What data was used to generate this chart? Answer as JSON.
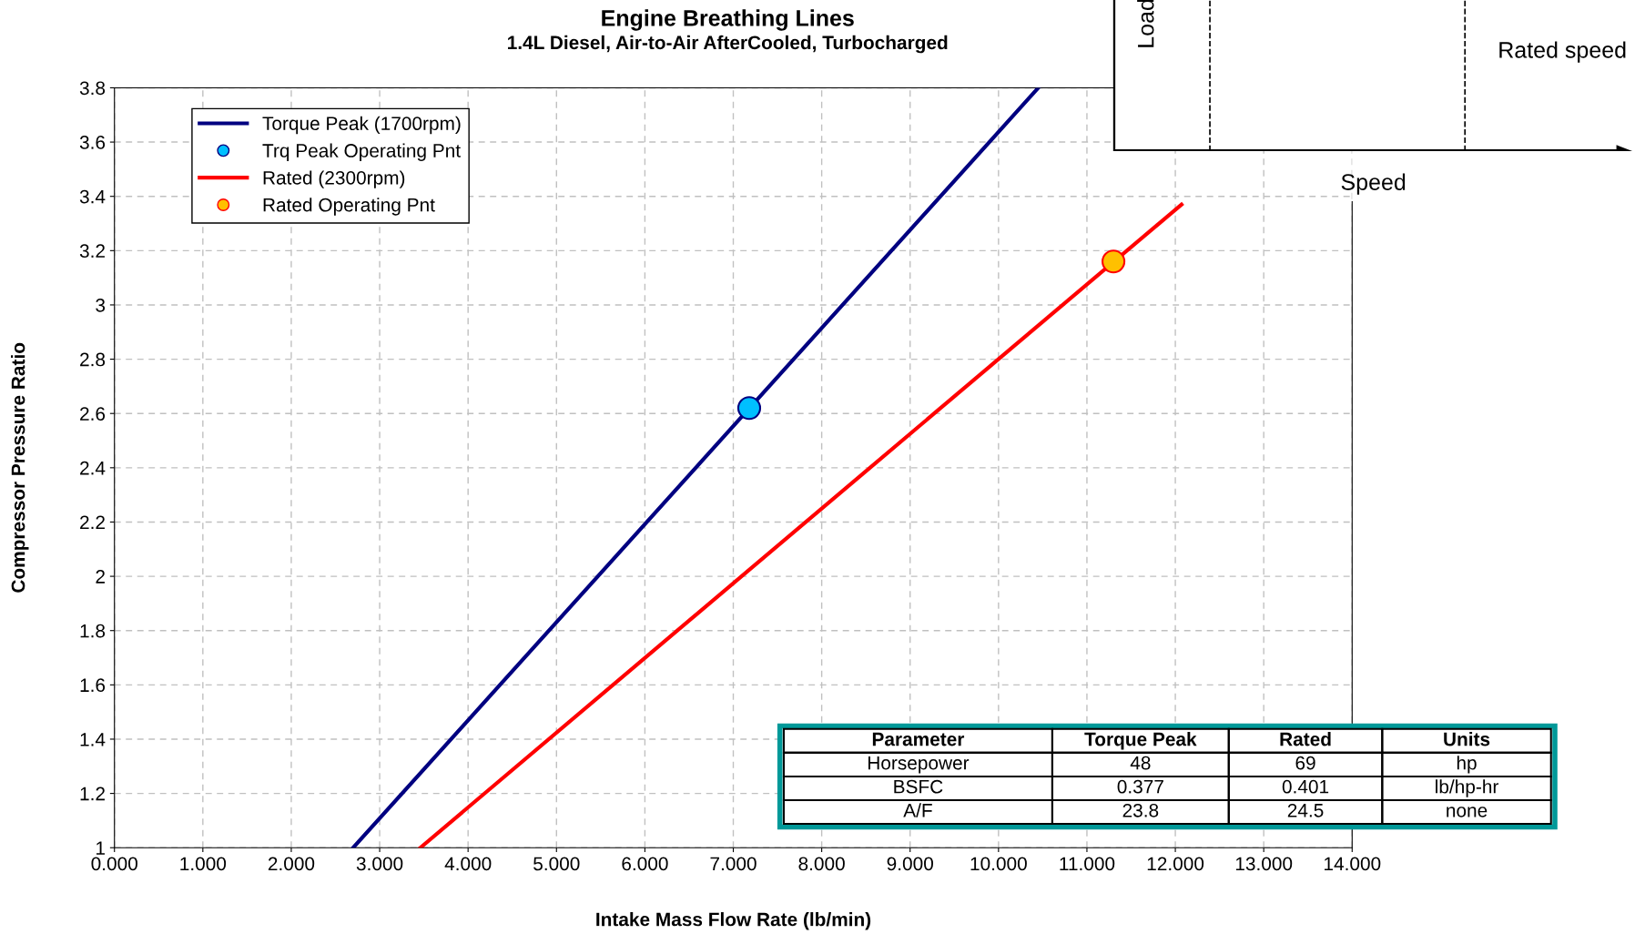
{
  "chart_data": {
    "type": "line",
    "title": "Engine Breathing Lines",
    "subtitle": "1.4L Diesel, Air-to-Air AfterCooled, Turbocharged",
    "xlabel": "Intake Mass Flow Rate (lb/min)",
    "ylabel": "Compressor Pressure Ratio",
    "series": [
      {
        "name": "Torque Peak (1700rpm)",
        "color": "#000080",
        "x": [
          2.7,
          10.45
        ],
        "values": [
          1,
          3.8
        ]
      },
      {
        "name": "Trq Peak Operating Pnt",
        "type": "scatter",
        "marker": "circle",
        "color": "#00bfff",
        "x": [
          7.18
        ],
        "values": [
          2.62
        ]
      },
      {
        "name": "Rated (2300rpm)",
        "color": "#ff0000",
        "x": [
          3.46,
          12.07
        ],
        "values": [
          1,
          3.37
        ]
      },
      {
        "name": "Rated Operating Pnt",
        "type": "scatter",
        "marker": "circle",
        "color": "#ffc000",
        "x": [
          11.3
        ],
        "values": [
          3.16
        ]
      }
    ],
    "xlim": [
      0,
      14
    ],
    "ylim": [
      1,
      3.8
    ],
    "xticks": [
      {
        "value": 0,
        "label": "0.000"
      },
      {
        "value": 1,
        "label": "1.000"
      },
      {
        "value": 2,
        "label": "2.000"
      },
      {
        "value": 3,
        "label": "3.000"
      },
      {
        "value": 4,
        "label": "4.000"
      },
      {
        "value": 5,
        "label": "5.000"
      },
      {
        "value": 6,
        "label": "6.000"
      },
      {
        "value": 7,
        "label": "7.000"
      },
      {
        "value": 8,
        "label": "8.000"
      },
      {
        "value": 9,
        "label": "9.000"
      },
      {
        "value": 10,
        "label": "10.000"
      },
      {
        "value": 11,
        "label": "11.000"
      },
      {
        "value": 12,
        "label": "12.000"
      },
      {
        "value": 13,
        "label": "13.000"
      },
      {
        "value": 14,
        "label": "14.000"
      }
    ],
    "yticks": [
      1,
      1.2,
      1.4,
      1.6,
      1.8,
      2,
      2.2,
      2.4,
      2.6,
      2.8,
      3,
      3.2,
      3.4,
      3.6,
      3.8
    ],
    "grid": true,
    "legend": "top left",
    "annotations": [
      "Load",
      "Rated speed",
      "Speed",
      "Parameter",
      "Torque Peak",
      "Rated",
      "Units",
      "Horsepower",
      "48",
      "69",
      "hp",
      "BSFC",
      "0.377",
      "0.401",
      "lb/hp-hr",
      "A/F",
      "23.8",
      "24.5",
      "none"
    ]
  }
}
